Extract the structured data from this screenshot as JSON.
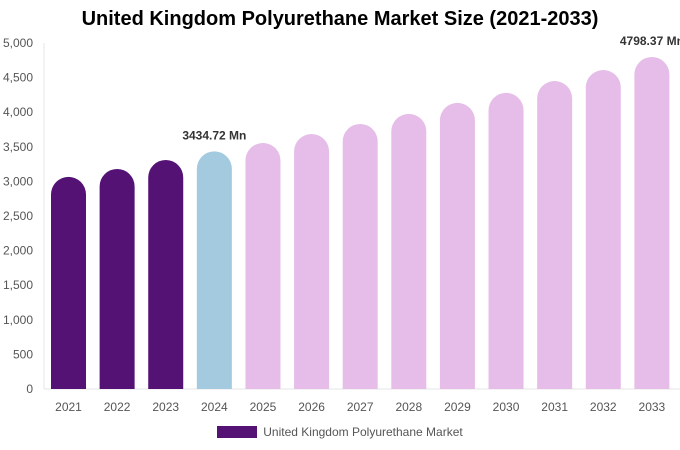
{
  "chart_data": {
    "type": "bar",
    "title": "United Kingdom Polyurethane Market Size (2021-2033)",
    "categories": [
      "2021",
      "2022",
      "2023",
      "2024",
      "2025",
      "2026",
      "2027",
      "2028",
      "2029",
      "2030",
      "2031",
      "2032",
      "2033"
    ],
    "series": [
      {
        "name": "United Kingdom Polyurethane Market",
        "values": [
          3065,
          3180,
          3310,
          3434.72,
          3555,
          3685,
          3830,
          3975,
          4135,
          4280,
          4450,
          4610,
          4798.37
        ]
      }
    ],
    "data_labels": [
      {
        "index": 3,
        "text": "3434.72 Mn"
      },
      {
        "index": 12,
        "text": "4798.37 Mn"
      }
    ],
    "ylim": [
      0,
      5000
    ],
    "yticks": [
      "0",
      "500",
      "1,000",
      "1,500",
      "2,000",
      "2,500",
      "3,000",
      "3,500",
      "4,000",
      "4,500",
      "5,000"
    ],
    "xlabel": "",
    "ylabel": "",
    "grid": false,
    "legend_position": "bottom",
    "colors": {
      "historical": "#541275",
      "current": "#a3cadf",
      "forecast": "#e6bde8",
      "legend": "#541275"
    }
  }
}
